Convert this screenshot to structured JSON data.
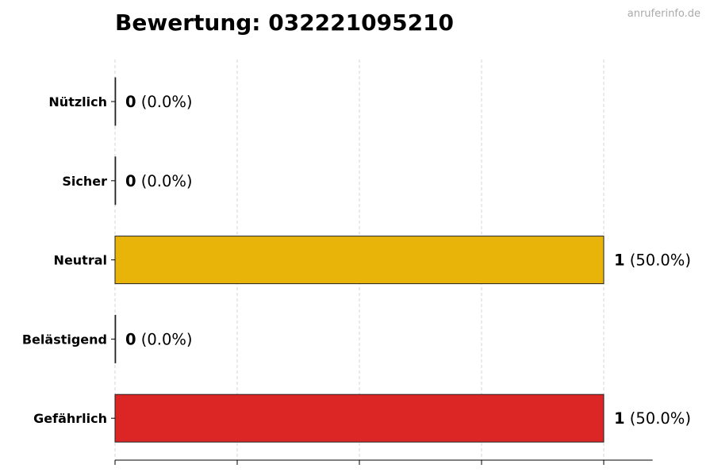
{
  "title": "Bewertung: 032221095210",
  "watermark": "anruferinfo.de",
  "chart_data": {
    "type": "bar",
    "orientation": "horizontal",
    "title": "Bewertung: 032221095210",
    "categories": [
      "Nützlich",
      "Sicher",
      "Neutral",
      "Belästigend",
      "Gefährlich"
    ],
    "values": [
      0,
      0,
      1,
      0,
      1
    ],
    "percent_labels": [
      "(0.0%)",
      "(0.0%)",
      "(50.0%)",
      "(0.0%)",
      "(50.0%)"
    ],
    "colors": [
      "#2e9e44",
      "#3b82f6",
      "#e8b40a",
      "#f97316",
      "#dc2626"
    ],
    "xlim": [
      0,
      1.1
    ],
    "xticks": [
      0,
      0.25,
      0.5,
      0.75,
      1.0
    ],
    "xtick_labels_shown": false,
    "grid": "x dashed",
    "xlabel": "",
    "ylabel": ""
  }
}
